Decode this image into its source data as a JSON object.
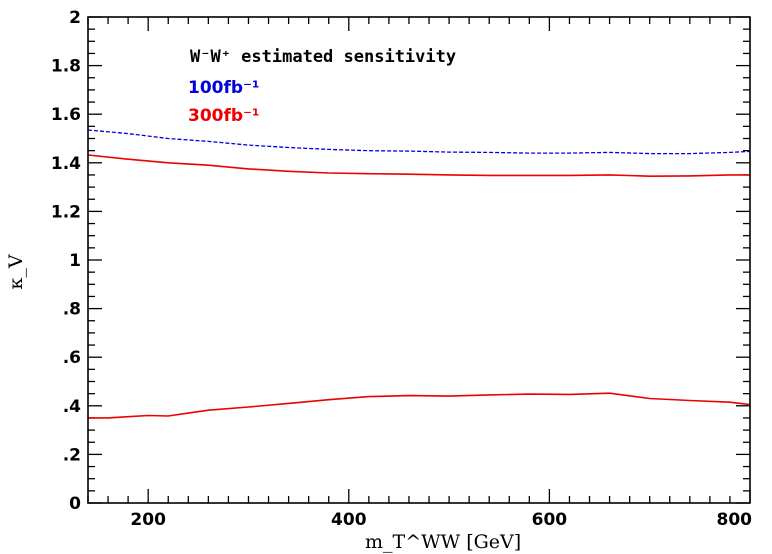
{
  "chart_data": {
    "type": "line",
    "legend_title": "W⁻W⁺ estimated sensitivity",
    "xlabel": "m_T^WW [GeV]",
    "ylabel": "κ_V",
    "xlim": [
      140,
      800
    ],
    "ylim": [
      0,
      2
    ],
    "x_ticklabels": [
      "200",
      "400",
      "600",
      "800"
    ],
    "y_ticklabels": [
      "0",
      ".2",
      ".4",
      ".6",
      ".8",
      "1",
      "1.2",
      "1.4",
      "1.6",
      "1.8",
      "2"
    ],
    "legend_position": "top-left",
    "series": [
      {
        "name": "100fb⁻¹",
        "color": "#0000dd",
        "style": "dashed",
        "x": [
          140,
          180,
          220,
          260,
          300,
          340,
          380,
          420,
          460,
          500,
          540,
          580,
          620,
          660,
          700,
          740,
          780,
          800
        ],
        "y": [
          1.535,
          1.52,
          1.5,
          1.488,
          1.473,
          1.463,
          1.455,
          1.45,
          1.448,
          1.444,
          1.443,
          1.44,
          1.44,
          1.443,
          1.438,
          1.438,
          1.443,
          1.447
        ]
      },
      {
        "name": "300fb⁻¹",
        "color": "#ee0000",
        "style": "solid",
        "x": [
          140,
          180,
          220,
          260,
          300,
          340,
          380,
          420,
          460,
          500,
          540,
          580,
          620,
          660,
          700,
          740,
          780,
          800
        ],
        "y": [
          1.432,
          1.415,
          1.4,
          1.39,
          1.375,
          1.365,
          1.358,
          1.355,
          1.353,
          1.35,
          1.348,
          1.348,
          1.348,
          1.35,
          1.345,
          1.346,
          1.35,
          1.35
        ]
      },
      {
        "name": "300fb⁻¹",
        "color": "#ee0000",
        "style": "solid",
        "x": [
          140,
          160,
          180,
          200,
          220,
          240,
          260,
          300,
          340,
          380,
          420,
          460,
          500,
          540,
          580,
          620,
          660,
          700,
          740,
          780,
          800
        ],
        "y": [
          0.35,
          0.35,
          0.355,
          0.36,
          0.358,
          0.37,
          0.382,
          0.395,
          0.41,
          0.425,
          0.438,
          0.442,
          0.44,
          0.445,
          0.448,
          0.447,
          0.452,
          0.43,
          0.422,
          0.415,
          0.405
        ]
      }
    ]
  }
}
